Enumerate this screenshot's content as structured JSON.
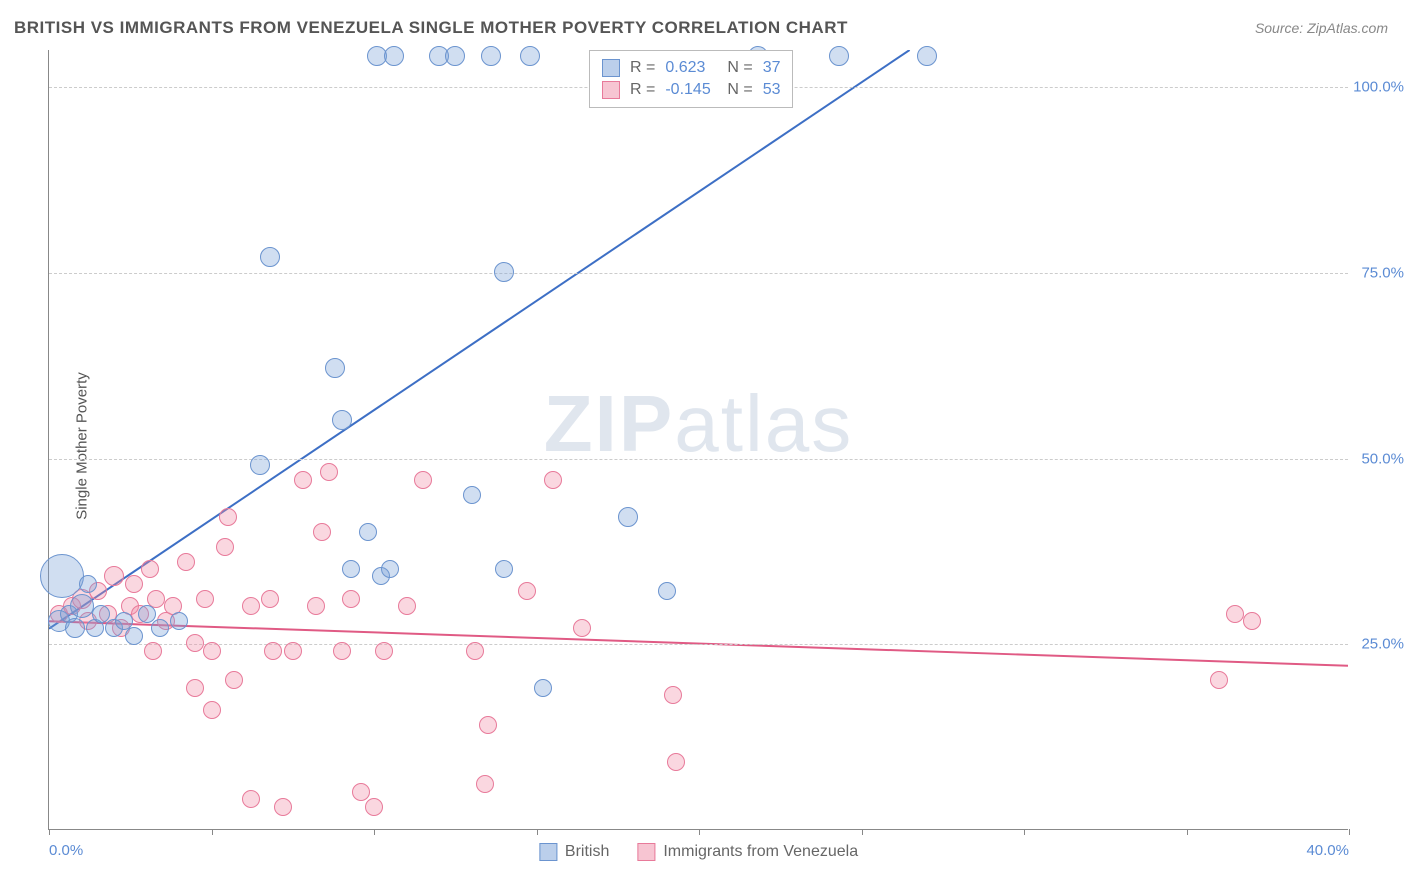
{
  "title": "BRITISH VS IMMIGRANTS FROM VENEZUELA SINGLE MOTHER POVERTY CORRELATION CHART",
  "source": "Source: ZipAtlas.com",
  "ylabel": "Single Mother Poverty",
  "watermark_zip": "ZIP",
  "watermark_atlas": "atlas",
  "chart": {
    "type": "scatter",
    "xlim": [
      0,
      40
    ],
    "ylim": [
      0,
      105
    ],
    "y_gridlines": [
      25,
      50,
      75,
      100
    ],
    "y_tick_labels": [
      "25.0%",
      "50.0%",
      "75.0%",
      "100.0%"
    ],
    "x_ticks": [
      0,
      5,
      10,
      15,
      20,
      25,
      30,
      35,
      40
    ],
    "x_tick_labels_shown": {
      "0": "0.0%",
      "40": "40.0%"
    },
    "background_color": "#ffffff",
    "grid_color": "#cccccc",
    "axis_color": "#888888",
    "tick_label_color": "#5b8bd4",
    "base_point_radius": 9,
    "series": {
      "blue": {
        "label": "British",
        "fill": "rgba(120,160,215,0.35)",
        "stroke": "#6b94cf",
        "trend": {
          "x1": 0,
          "y1": 27,
          "x2": 26.5,
          "y2": 105,
          "color": "#3d6fc5",
          "width": 2
        },
        "points": [
          {
            "x": 0.3,
            "y": 28,
            "r": 11
          },
          {
            "x": 0.6,
            "y": 29,
            "r": 9
          },
          {
            "x": 0.8,
            "y": 27,
            "r": 10
          },
          {
            "x": 0.4,
            "y": 34,
            "r": 22
          },
          {
            "x": 1.0,
            "y": 30,
            "r": 12
          },
          {
            "x": 1.2,
            "y": 33,
            "r": 9
          },
          {
            "x": 1.4,
            "y": 27,
            "r": 9
          },
          {
            "x": 1.6,
            "y": 29,
            "r": 9
          },
          {
            "x": 2.0,
            "y": 27,
            "r": 9
          },
          {
            "x": 2.3,
            "y": 28,
            "r": 9
          },
          {
            "x": 2.6,
            "y": 26,
            "r": 9
          },
          {
            "x": 3.0,
            "y": 29,
            "r": 9
          },
          {
            "x": 3.4,
            "y": 27,
            "r": 9
          },
          {
            "x": 4.0,
            "y": 28,
            "r": 9
          },
          {
            "x": 6.5,
            "y": 49,
            "r": 10
          },
          {
            "x": 6.8,
            "y": 77,
            "r": 10
          },
          {
            "x": 8.8,
            "y": 62,
            "r": 10
          },
          {
            "x": 9.0,
            "y": 55,
            "r": 10
          },
          {
            "x": 9.3,
            "y": 35,
            "r": 9
          },
          {
            "x": 9.8,
            "y": 40,
            "r": 9
          },
          {
            "x": 10.2,
            "y": 34,
            "r": 9
          },
          {
            "x": 10.5,
            "y": 35,
            "r": 9
          },
          {
            "x": 10.1,
            "y": 104,
            "r": 10
          },
          {
            "x": 10.6,
            "y": 104,
            "r": 10
          },
          {
            "x": 12.0,
            "y": 104,
            "r": 10
          },
          {
            "x": 12.5,
            "y": 104,
            "r": 10
          },
          {
            "x": 13.0,
            "y": 45,
            "r": 9
          },
          {
            "x": 13.6,
            "y": 104,
            "r": 10
          },
          {
            "x": 14.0,
            "y": 35,
            "r": 9
          },
          {
            "x": 14.0,
            "y": 75,
            "r": 10
          },
          {
            "x": 14.8,
            "y": 104,
            "r": 10
          },
          {
            "x": 15.2,
            "y": 19,
            "r": 9
          },
          {
            "x": 17.8,
            "y": 42,
            "r": 10
          },
          {
            "x": 19.0,
            "y": 32,
            "r": 9
          },
          {
            "x": 21.8,
            "y": 104,
            "r": 10
          },
          {
            "x": 24.3,
            "y": 104,
            "r": 10
          },
          {
            "x": 27.0,
            "y": 104,
            "r": 10
          }
        ]
      },
      "pink": {
        "label": "Immigrants from Venezuela",
        "fill": "rgba(240,140,165,0.35)",
        "stroke": "#e87a9a",
        "trend": {
          "x1": 0,
          "y1": 28,
          "x2": 40,
          "y2": 22,
          "color": "#e05a84",
          "width": 2
        },
        "points": [
          {
            "x": 0.3,
            "y": 29,
            "r": 9
          },
          {
            "x": 0.7,
            "y": 30,
            "r": 9
          },
          {
            "x": 1.0,
            "y": 31,
            "r": 10
          },
          {
            "x": 1.2,
            "y": 28,
            "r": 9
          },
          {
            "x": 1.5,
            "y": 32,
            "r": 9
          },
          {
            "x": 1.8,
            "y": 29,
            "r": 9
          },
          {
            "x": 2.0,
            "y": 34,
            "r": 10
          },
          {
            "x": 2.2,
            "y": 27,
            "r": 9
          },
          {
            "x": 2.5,
            "y": 30,
            "r": 9
          },
          {
            "x": 2.6,
            "y": 33,
            "r": 9
          },
          {
            "x": 2.8,
            "y": 29,
            "r": 9
          },
          {
            "x": 3.1,
            "y": 35,
            "r": 9
          },
          {
            "x": 3.3,
            "y": 31,
            "r": 9
          },
          {
            "x": 3.2,
            "y": 24,
            "r": 9
          },
          {
            "x": 3.6,
            "y": 28,
            "r": 9
          },
          {
            "x": 3.8,
            "y": 30,
            "r": 9
          },
          {
            "x": 4.2,
            "y": 36,
            "r": 9
          },
          {
            "x": 4.5,
            "y": 25,
            "r": 9
          },
          {
            "x": 4.5,
            "y": 19,
            "r": 9
          },
          {
            "x": 4.8,
            "y": 31,
            "r": 9
          },
          {
            "x": 5.0,
            "y": 24,
            "r": 9
          },
          {
            "x": 5.0,
            "y": 16,
            "r": 9
          },
          {
            "x": 5.4,
            "y": 38,
            "r": 9
          },
          {
            "x": 5.7,
            "y": 20,
            "r": 9
          },
          {
            "x": 5.5,
            "y": 42,
            "r": 9
          },
          {
            "x": 6.2,
            "y": 30,
            "r": 9
          },
          {
            "x": 6.2,
            "y": 4,
            "r": 9
          },
          {
            "x": 6.8,
            "y": 31,
            "r": 9
          },
          {
            "x": 6.9,
            "y": 24,
            "r": 9
          },
          {
            "x": 7.2,
            "y": 3,
            "r": 9
          },
          {
            "x": 7.5,
            "y": 24,
            "r": 9
          },
          {
            "x": 7.8,
            "y": 47,
            "r": 9
          },
          {
            "x": 8.2,
            "y": 30,
            "r": 9
          },
          {
            "x": 8.4,
            "y": 40,
            "r": 9
          },
          {
            "x": 8.6,
            "y": 48,
            "r": 9
          },
          {
            "x": 9.0,
            "y": 24,
            "r": 9
          },
          {
            "x": 9.3,
            "y": 31,
            "r": 9
          },
          {
            "x": 9.6,
            "y": 5,
            "r": 9
          },
          {
            "x": 10.0,
            "y": 3,
            "r": 9
          },
          {
            "x": 10.3,
            "y": 24,
            "r": 9
          },
          {
            "x": 11.0,
            "y": 30,
            "r": 9
          },
          {
            "x": 11.5,
            "y": 47,
            "r": 9
          },
          {
            "x": 13.1,
            "y": 24,
            "r": 9
          },
          {
            "x": 13.4,
            "y": 6,
            "r": 9
          },
          {
            "x": 13.5,
            "y": 14,
            "r": 9
          },
          {
            "x": 14.7,
            "y": 32,
            "r": 9
          },
          {
            "x": 15.5,
            "y": 47,
            "r": 9
          },
          {
            "x": 16.4,
            "y": 27,
            "r": 9
          },
          {
            "x": 19.2,
            "y": 18,
            "r": 9
          },
          {
            "x": 19.3,
            "y": 9,
            "r": 9
          },
          {
            "x": 36.0,
            "y": 20,
            "r": 9
          },
          {
            "x": 36.5,
            "y": 29,
            "r": 9
          },
          {
            "x": 37.0,
            "y": 28,
            "r": 9
          }
        ]
      }
    }
  },
  "legend_top": {
    "rows": [
      {
        "swatch": "blue",
        "r_label": "R =",
        "r_value": "0.623",
        "n_label": "N =",
        "n_value": "37"
      },
      {
        "swatch": "pink",
        "r_label": "R =",
        "r_value": "-0.145",
        "n_label": "N =",
        "n_value": "53"
      }
    ]
  },
  "legend_bottom": {
    "items": [
      {
        "swatch": "blue",
        "label": "British"
      },
      {
        "swatch": "pink",
        "label": "Immigrants from Venezuela"
      }
    ]
  }
}
